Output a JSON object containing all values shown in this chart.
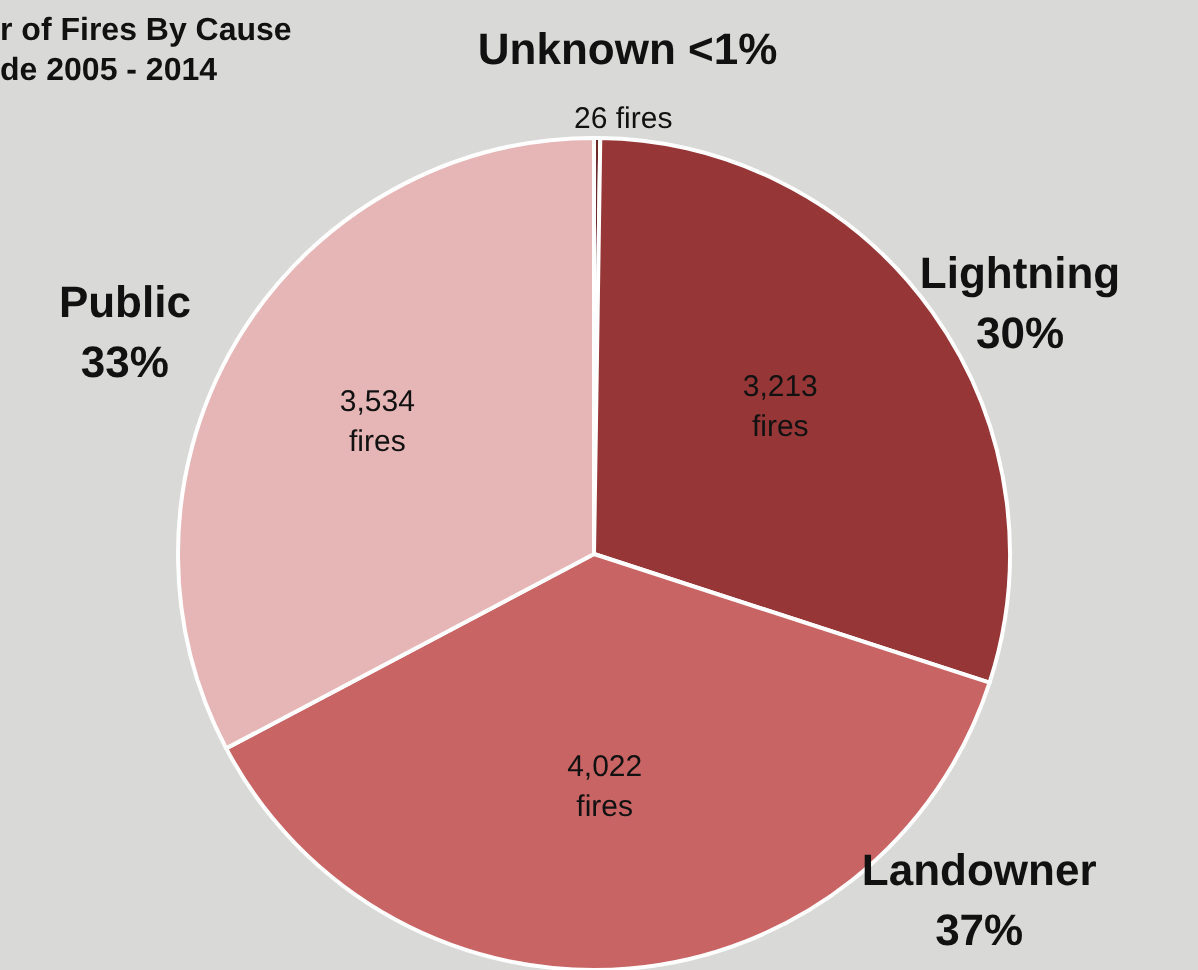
{
  "chart_data": {
    "type": "pie",
    "title": "r of Fires By Cause",
    "subtitle": "de 2005 - 2014",
    "categories": [
      "Unknown",
      "Lightning",
      "Landowner",
      "Public"
    ],
    "values": [
      26,
      3213,
      4022,
      3534
    ],
    "colors": [
      "#6e2a2a",
      "#963636",
      "#c96464",
      "#e6b5b5"
    ],
    "value_labels": [
      "26 fires",
      "3,213 fires",
      "4,022 fires",
      "3,534 fires"
    ],
    "annotations": [
      "<1%",
      "30%",
      "37%",
      "33%"
    ]
  }
}
